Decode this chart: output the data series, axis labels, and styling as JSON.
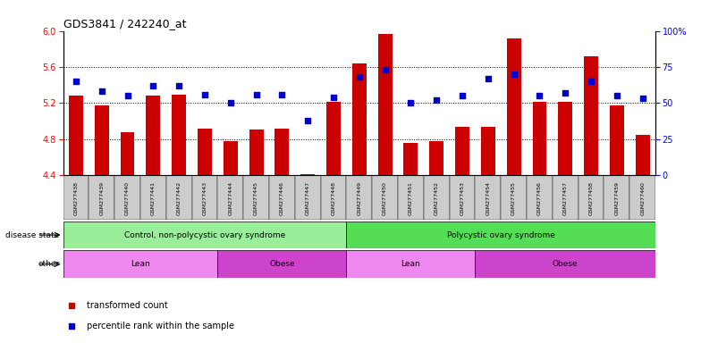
{
  "title": "GDS3841 / 242240_at",
  "samples": [
    "GSM277438",
    "GSM277439",
    "GSM277440",
    "GSM277441",
    "GSM277442",
    "GSM277443",
    "GSM277444",
    "GSM277445",
    "GSM277446",
    "GSM277447",
    "GSM277448",
    "GSM277449",
    "GSM277450",
    "GSM277451",
    "GSM277452",
    "GSM277453",
    "GSM277454",
    "GSM277455",
    "GSM277456",
    "GSM277457",
    "GSM277458",
    "GSM277459",
    "GSM277460"
  ],
  "bar_values": [
    5.28,
    5.17,
    4.87,
    5.28,
    5.29,
    4.91,
    4.78,
    4.9,
    4.91,
    4.41,
    5.21,
    5.64,
    5.97,
    4.76,
    4.78,
    4.93,
    4.93,
    5.92,
    5.21,
    5.21,
    5.72,
    5.17,
    4.84
  ],
  "percentile_values": [
    65,
    58,
    55,
    62,
    62,
    56,
    50,
    56,
    56,
    38,
    54,
    68,
    73,
    50,
    52,
    55,
    67,
    70,
    55,
    57,
    65,
    55,
    53
  ],
  "ylim_left": [
    4.4,
    6.0
  ],
  "ylim_right": [
    0,
    100
  ],
  "yticks_left": [
    4.4,
    4.8,
    5.2,
    5.6,
    6.0
  ],
  "yticks_right": [
    0,
    25,
    50,
    75,
    100
  ],
  "ytick_labels_right": [
    "0",
    "25",
    "50",
    "75",
    "100%"
  ],
  "bar_color": "#cc0000",
  "dot_color": "#0000cc",
  "disease_state_groups": [
    {
      "label": "Control, non-polycystic ovary syndrome",
      "start": 0,
      "end": 10,
      "color": "#99ee99"
    },
    {
      "label": "Polycystic ovary syndrome",
      "start": 11,
      "end": 22,
      "color": "#55dd55"
    }
  ],
  "other_groups": [
    {
      "label": "Lean",
      "start": 0,
      "end": 5,
      "color": "#ee88ee"
    },
    {
      "label": "Obese",
      "start": 6,
      "end": 10,
      "color": "#cc44cc"
    },
    {
      "label": "Lean",
      "start": 11,
      "end": 15,
      "color": "#ee88ee"
    },
    {
      "label": "Obese",
      "start": 16,
      "end": 22,
      "color": "#cc44cc"
    }
  ],
  "legend_labels": [
    "transformed count",
    "percentile rank within the sample"
  ],
  "legend_colors": [
    "#cc0000",
    "#0000cc"
  ],
  "disease_label": "disease state",
  "other_label": "other",
  "tick_bg_color": "#cccccc",
  "grid_yticks": [
    4.8,
    5.2,
    5.6
  ]
}
